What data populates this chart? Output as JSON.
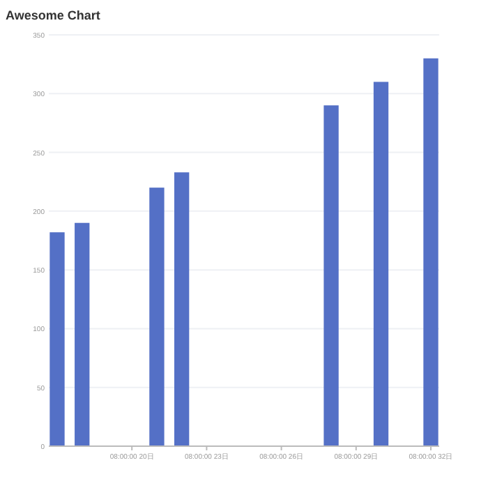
{
  "chart_data": {
    "type": "bar",
    "title": "Awesome Chart",
    "categories": [
      null,
      null,
      null,
      "08:00:00 20日",
      null,
      null,
      "08:00:00 23日",
      null,
      null,
      "08:00:00 26日",
      null,
      null,
      "08:00:00 29日",
      null,
      null,
      "08:00:00 32日"
    ],
    "values": [
      182,
      190,
      null,
      null,
      220,
      233,
      null,
      null,
      null,
      null,
      null,
      290,
      null,
      310,
      null,
      330
    ],
    "color": "#5470c6",
    "ylim": [
      0,
      350
    ],
    "yticks": [
      0,
      50,
      100,
      150,
      200,
      250,
      300,
      350
    ],
    "grid": "y"
  }
}
